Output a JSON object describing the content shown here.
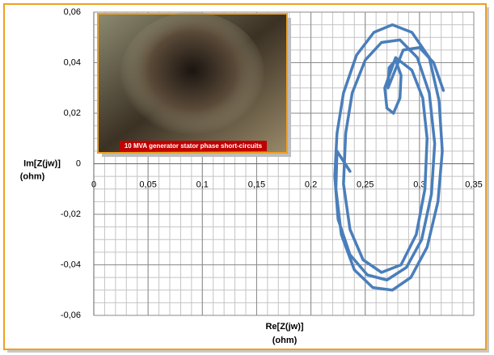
{
  "chart_data": {
    "type": "line",
    "x_label": [
      "Re[Z(jw)]",
      "(ohm)"
    ],
    "y_label": [
      "Im[Z(jw)]",
      "(ohm)"
    ],
    "image_caption": "10 MVA generator stator phase short-circuits",
    "x": [
      0.236,
      0.224,
      0.223,
      0.228,
      0.24,
      0.257,
      0.275,
      0.292,
      0.307,
      0.317,
      0.321,
      0.318,
      0.309,
      0.293,
      0.275,
      0.258,
      0.242,
      0.23,
      0.224,
      0.222,
      0.225,
      0.236,
      0.252,
      0.27,
      0.288,
      0.302,
      0.311,
      0.314,
      0.309,
      0.298,
      0.282,
      0.265,
      0.25,
      0.238,
      0.232,
      0.23,
      0.236,
      0.248,
      0.265,
      0.283,
      0.297,
      0.305,
      0.307,
      0.303,
      0.293,
      0.278,
      0.268,
      0.27,
      0.276,
      0.282,
      0.283,
      0.278,
      0.272,
      0.271,
      0.285,
      0.3,
      0.313,
      0.322
    ],
    "series": [
      {
        "name": "Z(jw)",
        "color": "#4a7ebb",
        "values": [
          -0.003,
          0.005,
          -0.01,
          -0.028,
          -0.042,
          -0.049,
          -0.05,
          -0.045,
          -0.033,
          -0.015,
          0.005,
          0.025,
          0.042,
          0.052,
          0.055,
          0.052,
          0.043,
          0.028,
          0.012,
          -0.005,
          -0.022,
          -0.036,
          -0.044,
          -0.046,
          -0.041,
          -0.03,
          -0.012,
          0.008,
          0.028,
          0.042,
          0.049,
          0.048,
          0.041,
          0.028,
          0.012,
          -0.008,
          -0.026,
          -0.038,
          -0.043,
          -0.04,
          -0.028,
          -0.01,
          0.01,
          0.026,
          0.037,
          0.042,
          0.03,
          0.022,
          0.02,
          0.026,
          0.035,
          0.041,
          0.038,
          0.03,
          0.045,
          0.046,
          0.04,
          0.029
        ]
      }
    ],
    "xlim": [
      0,
      0.35
    ],
    "ylim": [
      -0.06,
      0.06
    ],
    "xticks": [
      0,
      {
        "value": 0.05,
        "label": "0,05"
      },
      {
        "value": 0.1,
        "label": "0,1"
      },
      {
        "value": 0.15,
        "label": "0,15"
      },
      {
        "value": 0.2,
        "label": "0,2"
      },
      {
        "value": 0.25,
        "label": "0,25"
      },
      {
        "value": 0.3,
        "label": "0,3"
      },
      {
        "value": 0.35,
        "label": "0,35"
      }
    ],
    "yticks": [
      {
        "value": -0.06,
        "label": "-0,06"
      },
      {
        "value": -0.04,
        "label": "-0,04"
      },
      {
        "value": -0.02,
        "label": "-0,02"
      },
      0,
      {
        "value": 0.02,
        "label": "0,02"
      },
      {
        "value": 0.04,
        "label": "0,04"
      },
      {
        "value": 0.06,
        "label": "0,06"
      }
    ],
    "grid": true,
    "minor_grid": {
      "x": 0.01,
      "y": 0.005
    }
  }
}
